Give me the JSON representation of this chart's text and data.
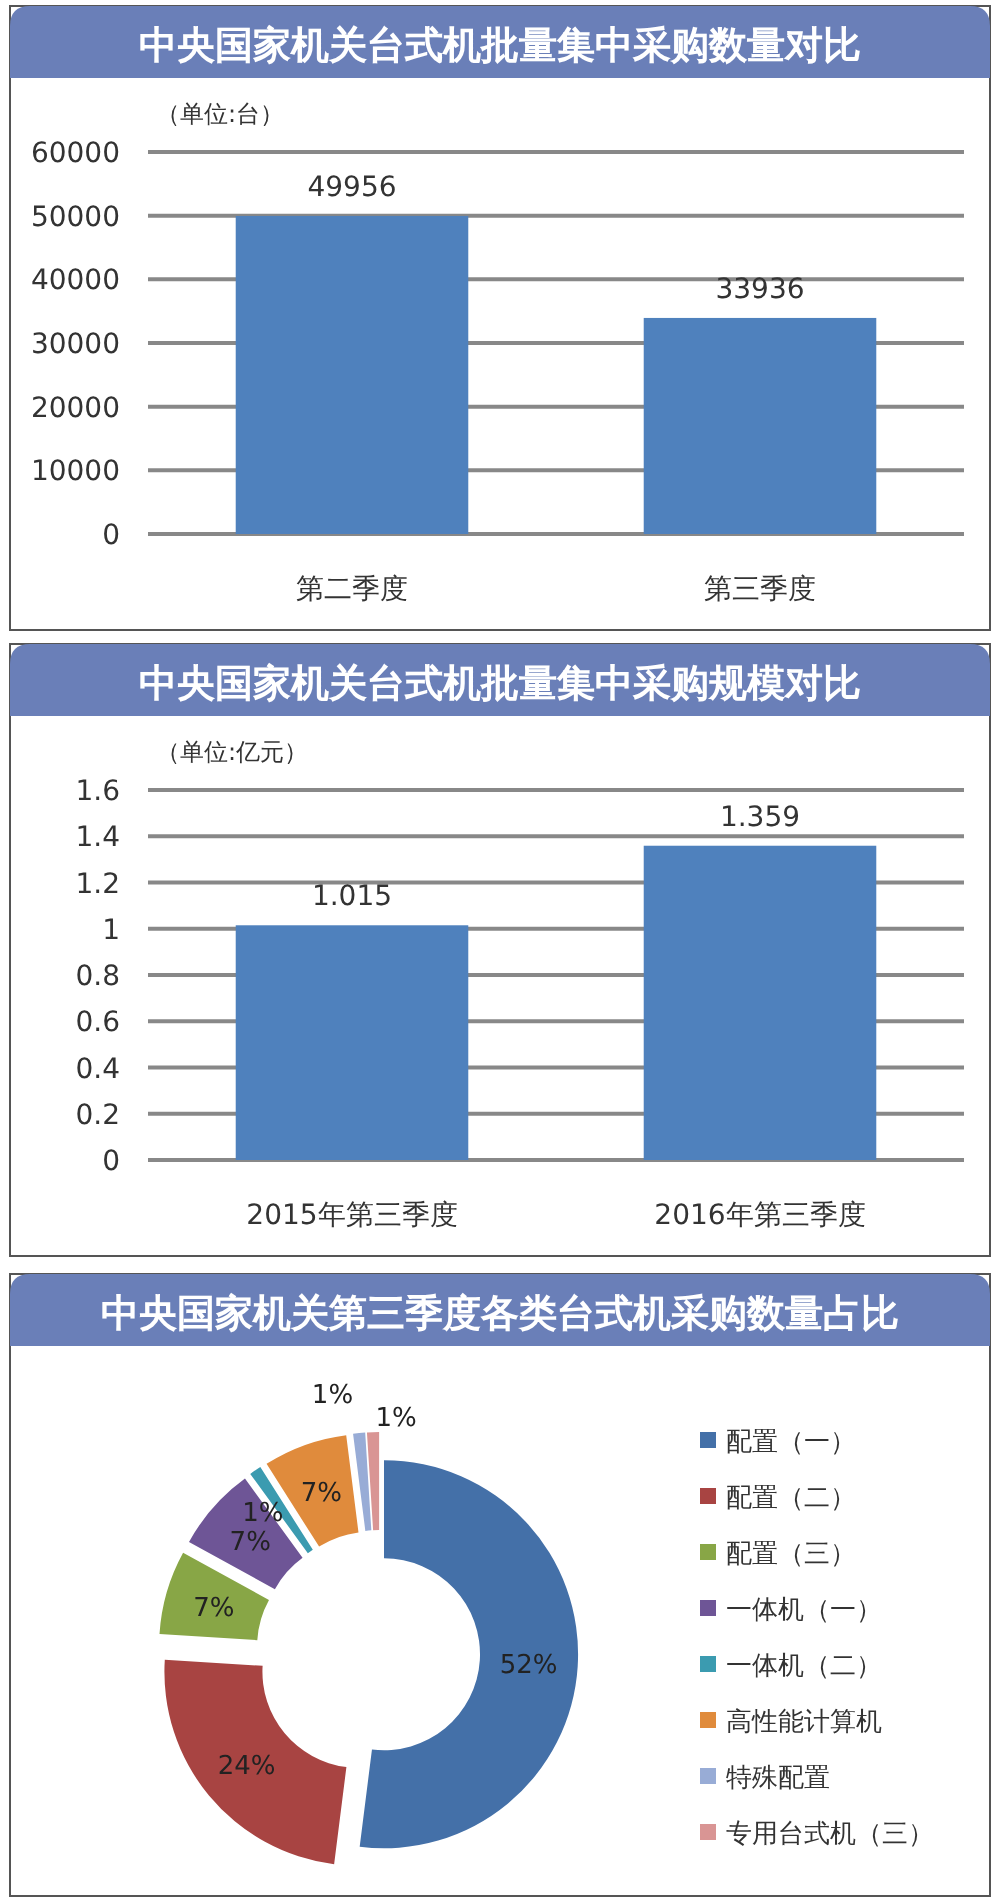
{
  "chart_data": [
    {
      "type": "bar",
      "title": "中央国家机关台式机批量集中采购数量对比",
      "ylabel": "（单位:台）",
      "categories": [
        "第二季度",
        "第三季度"
      ],
      "values": [
        49956,
        33936
      ],
      "color": "#4f81bd",
      "ylim": [
        0,
        60000
      ],
      "yticks": [
        0,
        10000,
        20000,
        30000,
        40000,
        50000,
        60000
      ],
      "grid": "y",
      "data_labels": true
    },
    {
      "type": "bar",
      "title": "中央国家机关台式机批量集中采购规模对比",
      "ylabel": "（单位:亿元）",
      "categories": [
        "2015年第三季度",
        "2016年第三季度"
      ],
      "values": [
        1.015,
        1.359
      ],
      "color": "#4f81bd",
      "ylim": [
        0,
        1.6
      ],
      "yticks": [
        0,
        0.2,
        0.4,
        0.6,
        0.8,
        1,
        1.2,
        1.4,
        1.6
      ],
      "grid": "y",
      "data_labels": true
    },
    {
      "type": "donut",
      "title": "中央国家机关第三季度各类台式机采购数量占比",
      "categories": [
        "配置（一）",
        "配置（二）",
        "配置（三）",
        "一体机（一）",
        "一体机（二）",
        "高性能计算机",
        "特殊配置",
        "专用台式机（三）"
      ],
      "values": [
        52,
        24,
        7,
        7,
        1,
        7,
        1,
        1
      ],
      "colors": [
        "#4470a8",
        "#a84442",
        "#88a646",
        "#6e5596",
        "#3b9bb0",
        "#e08b3c",
        "#98acd6",
        "#d99594"
      ],
      "legend": "right",
      "value_labels": [
        "52%",
        "24%",
        "7%",
        "7%",
        "1%",
        "7%",
        "1%",
        "1%"
      ]
    }
  ]
}
